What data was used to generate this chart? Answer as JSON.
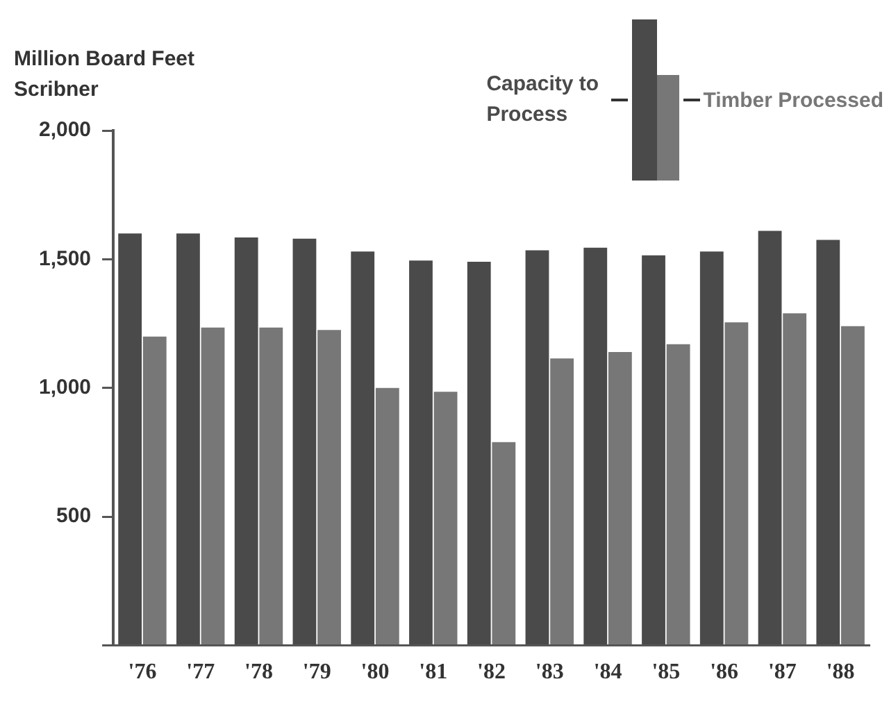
{
  "chart_data": {
    "type": "bar",
    "ylabel": "Million Board Feet Scribner",
    "categories": [
      "'76",
      "'77",
      "'78",
      "'79",
      "'80",
      "'81",
      "'82",
      "'83",
      "'84",
      "'85",
      "'86",
      "'87",
      "'88"
    ],
    "series": [
      {
        "name": "Capacity to Process",
        "color": "#4a4a4a",
        "values": [
          1600,
          1600,
          1585,
          1580,
          1530,
          1495,
          1490,
          1535,
          1545,
          1515,
          1530,
          1610,
          1575
        ]
      },
      {
        "name": "Timber Processed",
        "color": "#777777",
        "values": [
          1200,
          1235,
          1235,
          1225,
          1000,
          985,
          790,
          1115,
          1140,
          1170,
          1255,
          1290,
          1240
        ]
      }
    ],
    "ylim": [
      0,
      2000
    ],
    "yticks": [
      {
        "value": 0,
        "label": null
      },
      500,
      {
        "value": 1000,
        "label": "1,000"
      },
      {
        "value": 1500,
        "label": "1,500"
      },
      {
        "value": 2000,
        "label": "2,000"
      }
    ],
    "grid": false,
    "legend": "top right"
  }
}
